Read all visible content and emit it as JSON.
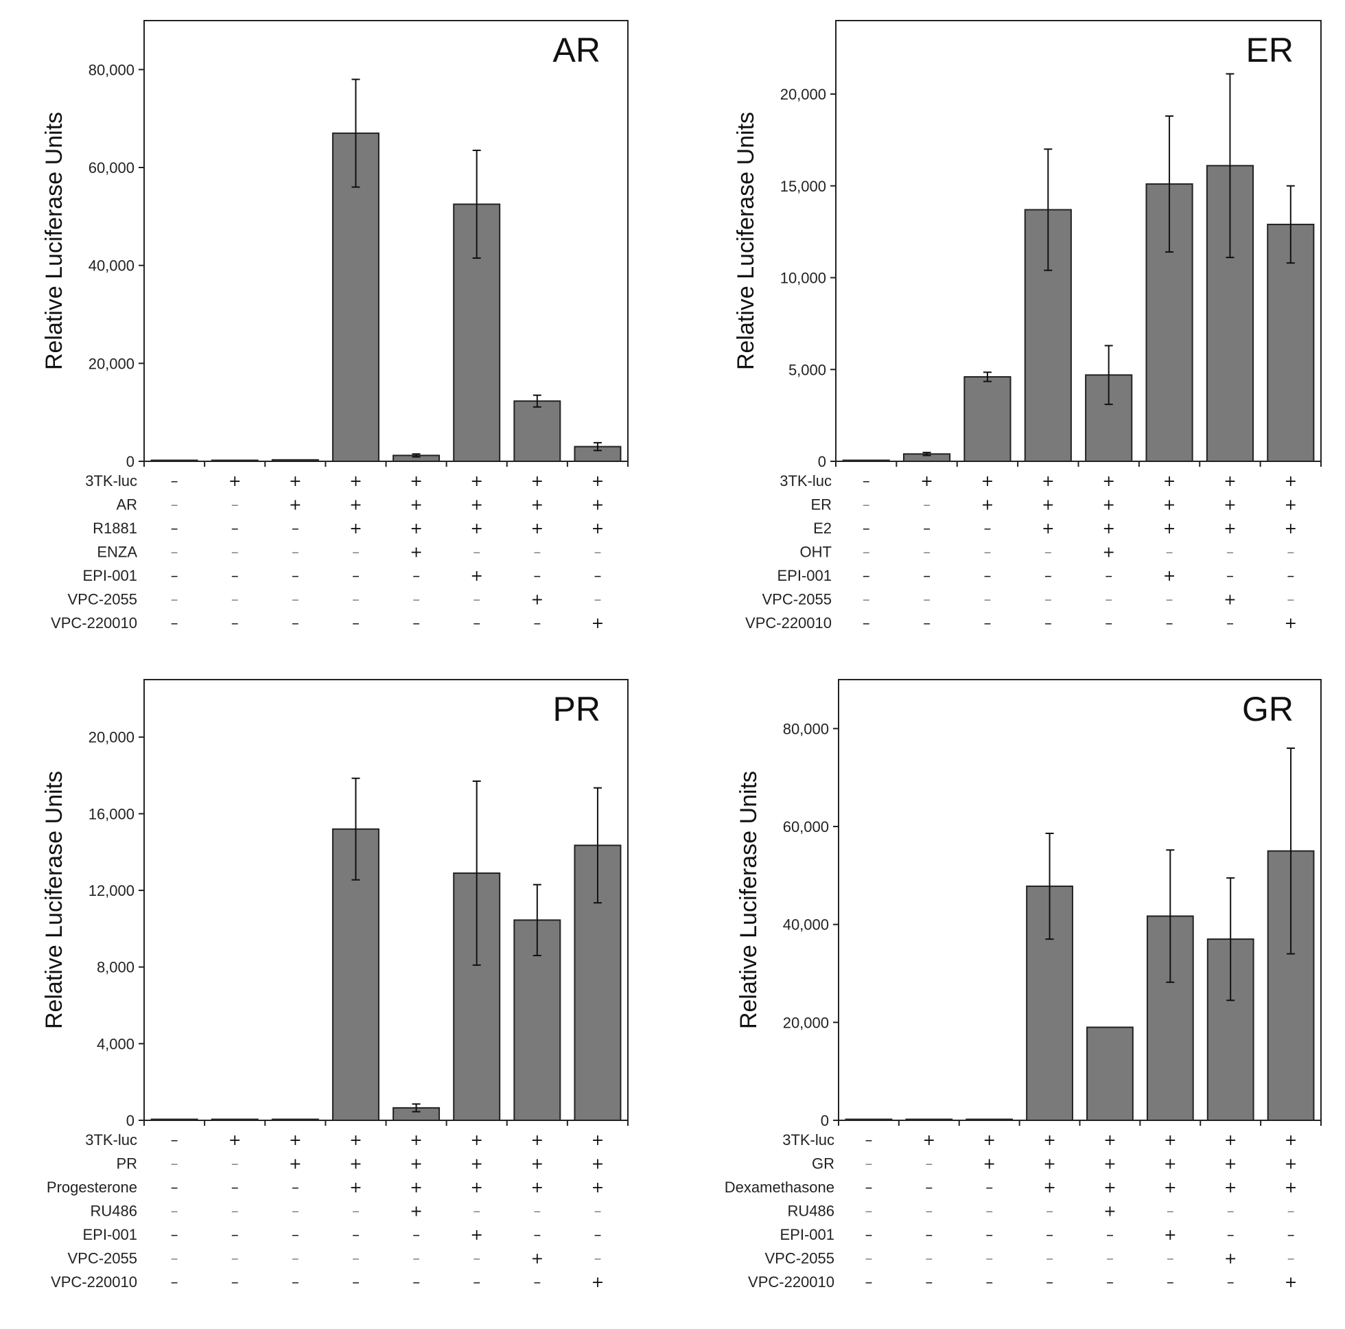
{
  "chart_data": [
    {
      "type": "bar",
      "title": "AR",
      "ylabel": "Relative Luciferase Units",
      "ylim": [
        0,
        90000
      ],
      "yticks": [
        0,
        20000,
        40000,
        60000,
        80000
      ],
      "ytick_labels": [
        "0",
        "20,000",
        "40,000",
        "60,000",
        "80,000"
      ],
      "values": [
        200,
        200,
        300,
        67000,
        1200,
        52500,
        12300,
        3000
      ],
      "errors": [
        0,
        0,
        0,
        11000,
        300,
        11000,
        1200,
        800
      ],
      "conditions": [
        {
          "label": "3TK-luc",
          "signs": [
            "–",
            "+",
            "+",
            "+",
            "+",
            "+",
            "+",
            "+"
          ]
        },
        {
          "label": "AR",
          "signs": [
            "–",
            "–",
            "+",
            "+",
            "+",
            "+",
            "+",
            "+"
          ]
        },
        {
          "label": "R1881",
          "signs": [
            "–",
            "–",
            "–",
            "+",
            "+",
            "+",
            "+",
            "+"
          ]
        },
        {
          "label": "ENZA",
          "signs": [
            "–",
            "–",
            "–",
            "–",
            "+",
            "–",
            "–",
            "–"
          ]
        },
        {
          "label": "EPI-001",
          "signs": [
            "–",
            "–",
            "–",
            "–",
            "–",
            "+",
            "–",
            "–"
          ]
        },
        {
          "label": "VPC-2055",
          "signs": [
            "–",
            "–",
            "–",
            "–",
            "–",
            "–",
            "+",
            "–"
          ]
        },
        {
          "label": "VPC-220010",
          "signs": [
            "–",
            "–",
            "–",
            "–",
            "–",
            "–",
            "–",
            "+"
          ]
        }
      ]
    },
    {
      "type": "bar",
      "title": "ER",
      "ylabel": "Relative Luciferase Units",
      "ylim": [
        0,
        24000
      ],
      "yticks": [
        0,
        5000,
        10000,
        15000,
        20000
      ],
      "ytick_labels": [
        "0",
        "5,000",
        "10,000",
        "15,000",
        "20,000"
      ],
      "values": [
        50,
        400,
        4600,
        13700,
        4700,
        15100,
        16100,
        12900
      ],
      "errors": [
        0,
        80,
        250,
        3300,
        1600,
        3700,
        5000,
        2100
      ],
      "conditions": [
        {
          "label": "3TK-luc",
          "signs": [
            "–",
            "+",
            "+",
            "+",
            "+",
            "+",
            "+",
            "+"
          ]
        },
        {
          "label": "ER",
          "signs": [
            "–",
            "–",
            "+",
            "+",
            "+",
            "+",
            "+",
            "+"
          ]
        },
        {
          "label": "E2",
          "signs": [
            "–",
            "–",
            "–",
            "+",
            "+",
            "+",
            "+",
            "+"
          ]
        },
        {
          "label": "OHT",
          "signs": [
            "–",
            "–",
            "–",
            "–",
            "+",
            "–",
            "–",
            "–"
          ]
        },
        {
          "label": "EPI-001",
          "signs": [
            "–",
            "–",
            "–",
            "–",
            "–",
            "+",
            "–",
            "–"
          ]
        },
        {
          "label": "VPC-2055",
          "signs": [
            "–",
            "–",
            "–",
            "–",
            "–",
            "–",
            "+",
            "–"
          ]
        },
        {
          "label": "VPC-220010",
          "signs": [
            "–",
            "–",
            "–",
            "–",
            "–",
            "–",
            "–",
            "+"
          ]
        }
      ]
    },
    {
      "type": "bar",
      "title": "PR",
      "ylabel": "Relative Luciferase Units",
      "ylim": [
        0,
        23000
      ],
      "yticks": [
        0,
        4000,
        8000,
        12000,
        16000,
        20000
      ],
      "ytick_labels": [
        "0",
        "4,000",
        "8,000",
        "12,000",
        "16,000",
        "20,000"
      ],
      "values": [
        20,
        30,
        40,
        15200,
        650,
        12900,
        10450,
        14350
      ],
      "errors": [
        0,
        0,
        0,
        2650,
        200,
        4800,
        1850,
        3000
      ],
      "conditions": [
        {
          "label": "3TK-luc",
          "signs": [
            "–",
            "+",
            "+",
            "+",
            "+",
            "+",
            "+",
            "+"
          ]
        },
        {
          "label": "PR",
          "signs": [
            "–",
            "–",
            "+",
            "+",
            "+",
            "+",
            "+",
            "+"
          ]
        },
        {
          "label": "Progesterone",
          "signs": [
            "–",
            "–",
            "–",
            "+",
            "+",
            "+",
            "+",
            "+"
          ]
        },
        {
          "label": "RU486",
          "signs": [
            "–",
            "–",
            "–",
            "–",
            "+",
            "–",
            "–",
            "–"
          ]
        },
        {
          "label": "EPI-001",
          "signs": [
            "–",
            "–",
            "–",
            "–",
            "–",
            "+",
            "–",
            "–"
          ]
        },
        {
          "label": "VPC-2055",
          "signs": [
            "–",
            "–",
            "–",
            "–",
            "–",
            "–",
            "+",
            "–"
          ]
        },
        {
          "label": "VPC-220010",
          "signs": [
            "–",
            "–",
            "–",
            "–",
            "–",
            "–",
            "–",
            "+"
          ]
        }
      ]
    },
    {
      "type": "bar",
      "title": "GR",
      "ylabel": "Relative Luciferase Units",
      "ylim": [
        0,
        90000
      ],
      "yticks": [
        0,
        20000,
        40000,
        60000,
        80000
      ],
      "ytick_labels": [
        "0",
        "20,000",
        "40,000",
        "60,000",
        "80,000"
      ],
      "values": [
        50,
        50,
        50,
        47800,
        19000,
        41700,
        37000,
        55000
      ],
      "errors": [
        0,
        0,
        0,
        10800,
        0,
        13500,
        12500,
        21000
      ],
      "conditions": [
        {
          "label": "3TK-luc",
          "signs": [
            "–",
            "+",
            "+",
            "+",
            "+",
            "+",
            "+",
            "+"
          ]
        },
        {
          "label": "GR",
          "signs": [
            "–",
            "–",
            "+",
            "+",
            "+",
            "+",
            "+",
            "+"
          ]
        },
        {
          "label": "Dexamethasone",
          "signs": [
            "–",
            "–",
            "–",
            "+",
            "+",
            "+",
            "+",
            "+"
          ]
        },
        {
          "label": "RU486",
          "signs": [
            "–",
            "–",
            "–",
            "–",
            "+",
            "–",
            "–",
            "–"
          ]
        },
        {
          "label": "EPI-001",
          "signs": [
            "–",
            "–",
            "–",
            "–",
            "–",
            "+",
            "–",
            "–"
          ]
        },
        {
          "label": "VPC-2055",
          "signs": [
            "–",
            "–",
            "–",
            "–",
            "–",
            "–",
            "+",
            "–"
          ]
        },
        {
          "label": "VPC-220010",
          "signs": [
            "–",
            "–",
            "–",
            "–",
            "–",
            "–",
            "–",
            "+"
          ]
        }
      ]
    }
  ],
  "colors": {
    "bar_fill": "#7a7a7a",
    "bar_stroke": "#222222",
    "axis": "#222222"
  }
}
